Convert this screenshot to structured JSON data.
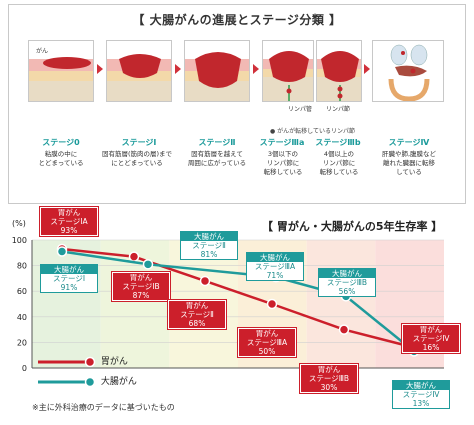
{
  "header": {
    "title": "【 大腸がんの進展とステージ分類 】"
  },
  "stages": [
    {
      "label": "ステージ0",
      "desc": [
        "粘膜の中に",
        "とどまっている"
      ]
    },
    {
      "label": "ステージⅠ",
      "desc": [
        "固有筋層(筋肉の層)まで",
        "にとどまっている"
      ]
    },
    {
      "label": "ステージⅡ",
      "desc": [
        "固有筋層を越えて",
        "周囲に広がっている"
      ]
    },
    {
      "label": "ステージⅢa",
      "desc": [
        "3個以下の",
        "リンパ節に",
        "転移している"
      ]
    },
    {
      "label": "ステージⅢb",
      "desc": [
        "4個以上の",
        "リンパ節に",
        "転移している"
      ]
    },
    {
      "label": "ステージⅣ",
      "desc": [
        "肝臓や肺,腹膜など",
        "離れた臓器に転移",
        "している"
      ]
    }
  ],
  "panel_labels": {
    "cancer": "がん",
    "lymph_duct": "リンパ管",
    "lymph_node": "リンパ節",
    "lymph_meta": "● がんが転移しているリンパ節"
  },
  "chart": {
    "title": "【 胃がん・大腸がんの5年生存率 】",
    "footnote": "※主に外科治療のデータに基づいたもの",
    "legend": {
      "gastric": "胃がん",
      "colorectal": "大腸がん"
    },
    "colors": {
      "gastric": "#cc1f2b",
      "colorectal": "#1f9b9b"
    }
  },
  "chart_data": {
    "type": "line",
    "ylabel": "(%)",
    "ylim": [
      0,
      100
    ],
    "yticks": [
      "0",
      "20",
      "40",
      "60",
      "80",
      "100"
    ],
    "categories": [
      "ステージⅠA",
      "ステージⅠB",
      "ステージⅡ",
      "ステージⅢA",
      "ステージⅢB",
      "ステージⅣ"
    ],
    "series": [
      {
        "name": "胃がん",
        "points": [
          {
            "label_top": "胃がん",
            "label": "ステージⅠA",
            "value": 93,
            "value_text": "93%"
          },
          {
            "label_top": "胃がん",
            "label": "ステージⅠB",
            "value": 87,
            "value_text": "87%"
          },
          {
            "label_top": "胃がん",
            "label": "ステージⅡ",
            "value": 68,
            "value_text": "68%"
          },
          {
            "label_top": "胃がん",
            "label": "ステージⅢA",
            "value": 50,
            "value_text": "50%"
          },
          {
            "label_top": "胃がん",
            "label": "ステージⅢB",
            "value": 30,
            "value_text": "30%"
          },
          {
            "label_top": "胃がん",
            "label": "ステージⅣ",
            "value": 16,
            "value_text": "16%"
          }
        ]
      },
      {
        "name": "大腸がん",
        "points": [
          {
            "label_top": "大腸がん",
            "label": "ステージⅠ",
            "value": 91,
            "value_text": "91%"
          },
          {
            "label_top": "大腸がん",
            "label": "ステージⅡ",
            "value": 81,
            "value_text": "81%"
          },
          {
            "label_top": "大腸がん",
            "label": "ステージⅢA",
            "value": 71,
            "value_text": "71%"
          },
          {
            "label_top": "大腸がん",
            "label": "ステージⅢB",
            "value": 56,
            "value_text": "56%"
          },
          {
            "label_top": "大腸がん",
            "label": "ステージⅣ",
            "value": 13,
            "value_text": "13%"
          }
        ]
      }
    ]
  }
}
